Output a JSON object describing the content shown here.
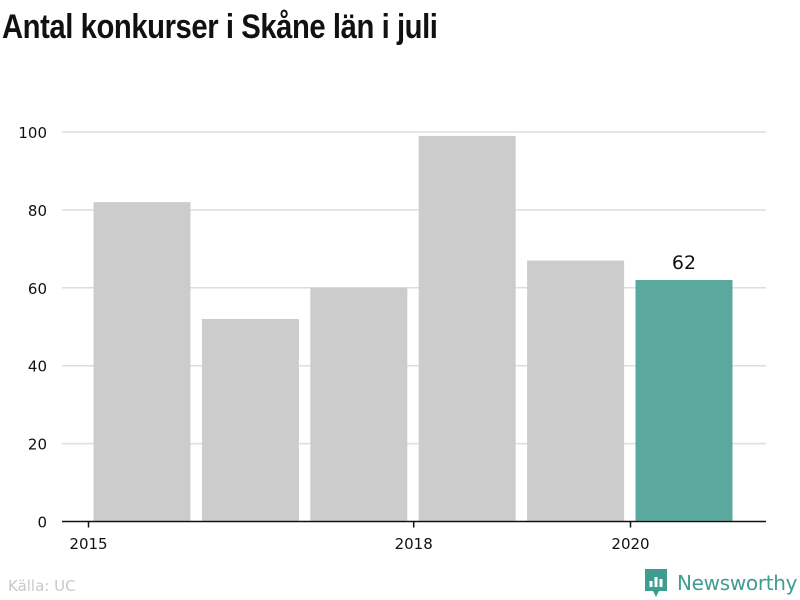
{
  "title": "Antal konkurser i Skåne län i juli",
  "source": "Källa: UC",
  "brand": {
    "name": "Newsworthy",
    "icon": "newsworthy-logo-icon",
    "color": "#3f9d8f"
  },
  "colors": {
    "bar": "#cccccc",
    "highlight": "#5ba89e",
    "grid": "#dddddd",
    "axis": "#111111"
  },
  "chart_data": {
    "type": "bar",
    "x": [
      2015,
      2016,
      2017,
      2018,
      2019,
      2020
    ],
    "values": [
      82,
      52,
      60,
      99,
      67,
      62
    ],
    "xticks": [
      2015,
      2018,
      2020
    ],
    "yticks": [
      0,
      20,
      40,
      60,
      80,
      100
    ],
    "ylim": [
      0,
      100
    ],
    "highlight_index": 5,
    "data_labels": [
      {
        "index": 5,
        "text": "62"
      }
    ],
    "grid": "horizontal",
    "legend": "none"
  }
}
